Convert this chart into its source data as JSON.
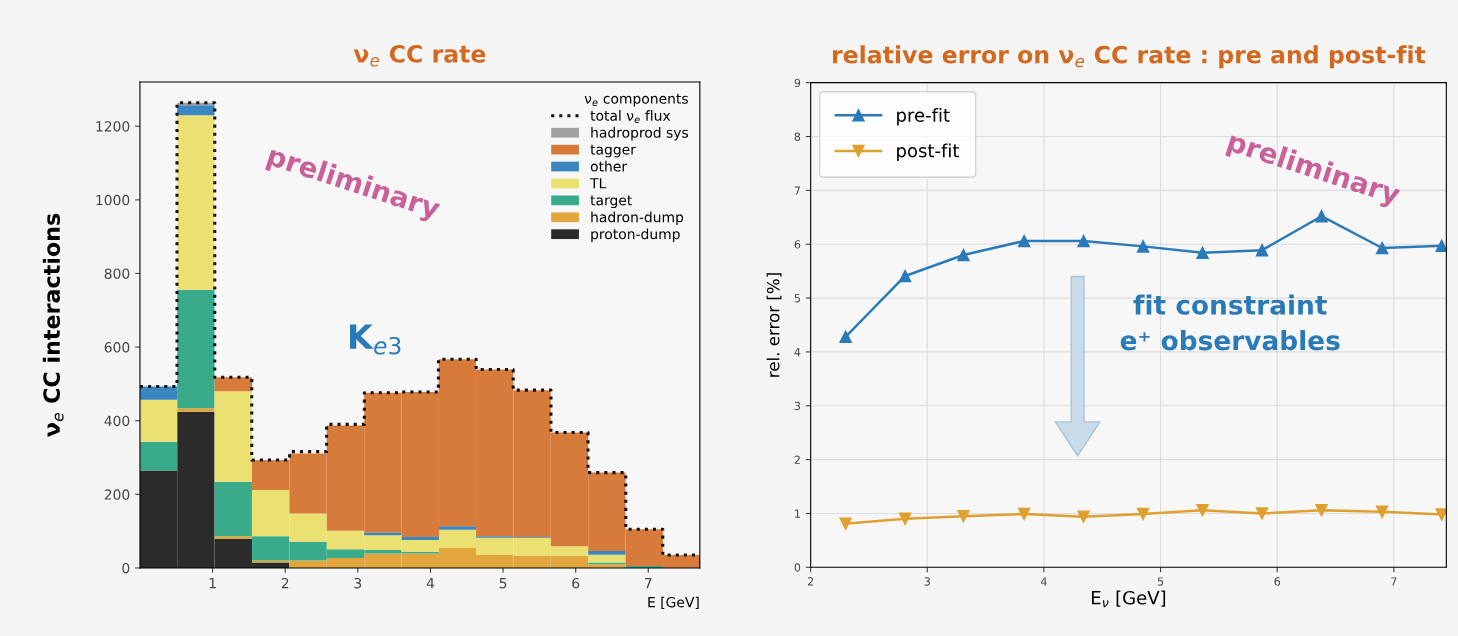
{
  "chart_data": [
    {
      "type": "bar",
      "title": "ν$_{e}$ CC rate",
      "xlabel": "E [GeV]",
      "ylabel": "ν$_{e}$ CC interactions",
      "legend_title": "ν$_{e}$ components",
      "stacked": true,
      "x": [
        0.255,
        0.77,
        1.285,
        1.8,
        2.315,
        2.83,
        3.345,
        3.86,
        4.37,
        4.885,
        5.4,
        5.915,
        6.43,
        6.945,
        7.455
      ],
      "series": [
        {
          "name": "proton-dump",
          "color": "#2b2b2b",
          "values": [
            265,
            424,
            79,
            15,
            null,
            null,
            0,
            0,
            0,
            0,
            0,
            0,
            0,
            0,
            0
          ]
        },
        {
          "name": "hadron-dump",
          "color": "#e3a63c",
          "values": [
            0,
            10,
            7,
            5,
            20,
            27,
            39,
            39,
            54,
            35,
            33,
            33,
            10,
            0,
            0
          ]
        },
        {
          "name": "target",
          "color": "#3aab8a",
          "values": [
            78,
            322,
            148,
            66,
            51,
            24,
            10,
            5,
            0,
            0,
            0,
            0,
            5,
            5,
            0
          ]
        },
        {
          "name": "TL",
          "color": "#ebe072",
          "values": [
            114,
            474,
            246,
            126,
            77,
            50,
            40,
            32,
            50,
            47,
            49,
            26,
            21,
            0,
            0
          ]
        },
        {
          "name": "other",
          "color": "#3a86c0",
          "values": [
            36,
            27,
            0,
            0,
            0,
            0,
            7,
            8,
            9,
            4,
            2,
            0,
            10,
            0,
            0
          ]
        },
        {
          "name": "tagger",
          "color": "#d77b3b",
          "values": [
            0,
            0,
            38,
            81,
            163,
            286,
            380,
            394,
            454,
            453,
            399,
            309,
            213,
            100,
            35
          ]
        },
        {
          "name": "hadroprod sys",
          "color": "#a0a0a0",
          "values": [
            0,
            7,
            0,
            0,
            0,
            0,
            0,
            0,
            0,
            0,
            0,
            0,
            0,
            0,
            0
          ]
        },
        {
          "name": "total ν$_{e}$ flux",
          "type": "step",
          "color": "#111111",
          "line_style": "dotted",
          "x": [
            0,
            0.51,
            1.03,
            1.54,
            2.06,
            2.57,
            3.09,
            3.6,
            4.11,
            4.63,
            5.14,
            5.66,
            6.17,
            6.69,
            7.2,
            7.71
          ],
          "values": [
            493,
            1264,
            518,
            293,
            316,
            390,
            476,
            478,
            567,
            539,
            483,
            368,
            259,
            105,
            35,
            35
          ]
        }
      ],
      "xlim": [
        0,
        7.71
      ],
      "xticks": [
        1,
        2,
        3,
        4,
        5,
        6,
        7
      ],
      "ylim": [
        0,
        1320
      ],
      "yticks": [
        0,
        200,
        400,
        600,
        800,
        1000,
        1200
      ],
      "grid": false,
      "legend": "top right",
      "annotations": [
        "preliminary",
        "K$_{e3}$"
      ]
    },
    {
      "type": "line",
      "title": "relative error on ν$_{e}$ CC rate : pre and post-fit",
      "xlabel": "E$_{ν}$ [GeV]",
      "ylabel": "rel. error [%]",
      "x": [
        2.3,
        2.81,
        3.31,
        3.83,
        4.34,
        4.85,
        5.36,
        5.87,
        6.38,
        6.9,
        7.41
      ],
      "series": [
        {
          "name": "pre-fit",
          "color": "#2a7ab8",
          "marker": "triangle",
          "values": [
            4.28,
            5.41,
            5.8,
            6.06,
            6.06,
            5.96,
            5.84,
            5.89,
            6.52,
            5.93,
            5.97
          ]
        },
        {
          "name": "post-fit",
          "color": "#e0a030",
          "marker": "triangle_down",
          "values": [
            0.81,
            0.9,
            0.95,
            0.99,
            0.94,
            0.99,
            1.06,
            1.0,
            1.06,
            1.03,
            0.98
          ]
        }
      ],
      "xlim": [
        2,
        7.45
      ],
      "xticks": [
        2,
        3,
        4,
        5,
        6,
        7
      ],
      "ylim": [
        0,
        9
      ],
      "yticks": [
        0,
        1,
        2,
        3,
        4,
        5,
        6,
        7,
        8,
        9
      ],
      "grid": true,
      "legend": "top left",
      "line_style": "solid",
      "annotations": [
        "preliminary",
        "fit constraint\ne⁺ observables"
      ]
    }
  ]
}
